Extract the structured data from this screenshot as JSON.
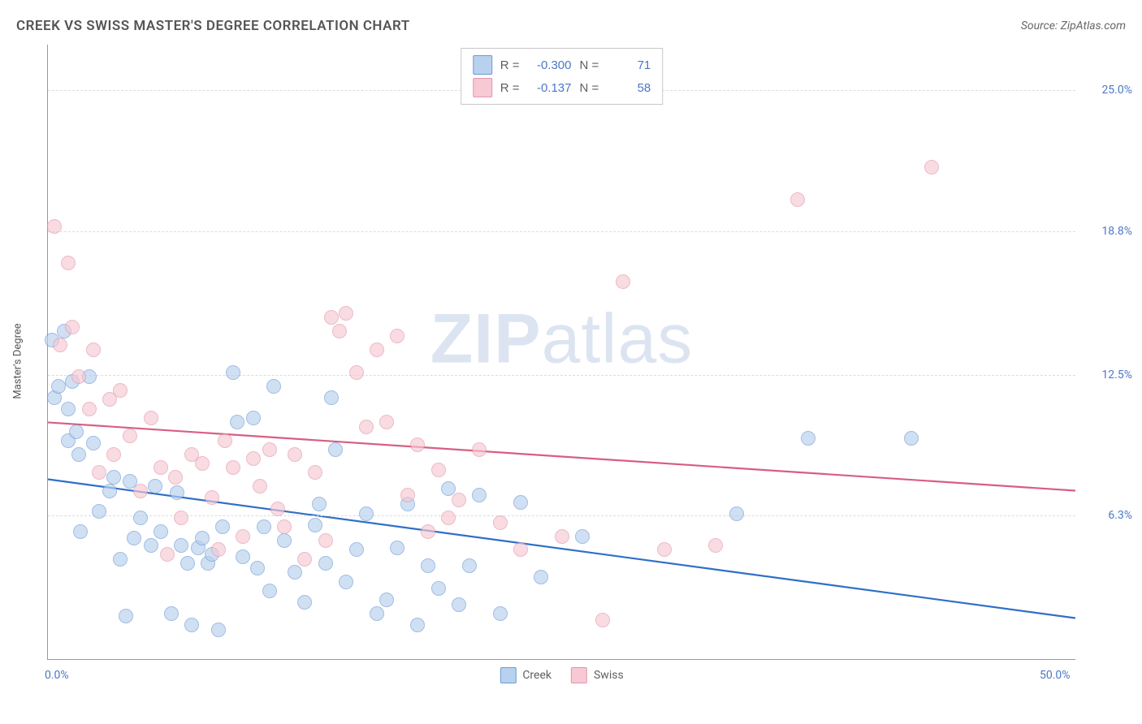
{
  "header": {
    "title": "CREEK VS SWISS MASTER'S DEGREE CORRELATION CHART",
    "source_prefix": "Source: ",
    "source_name": "ZipAtlas.com"
  },
  "watermark": {
    "zip": "ZIP",
    "atlas": "atlas"
  },
  "y_axis_label": "Master's Degree",
  "chart": {
    "type": "scatter",
    "xlim": [
      0,
      50
    ],
    "ylim": [
      0,
      27
    ],
    "x_ticks": [
      {
        "value": 0,
        "label": "0.0%"
      },
      {
        "value": 50,
        "label": "50.0%"
      }
    ],
    "y_gridlines": [
      {
        "value": 6.3,
        "label": "6.3%"
      },
      {
        "value": 12.5,
        "label": "12.5%"
      },
      {
        "value": 18.8,
        "label": "18.8%"
      },
      {
        "value": 25.0,
        "label": "25.0%"
      }
    ],
    "background_color": "#ffffff",
    "grid_color": "#dcdcdc",
    "axis_color": "#999999",
    "tick_label_color": "#4a78c8",
    "marker_radius": 9,
    "marker_border_width": 1.5,
    "trend_line_width": 2.2,
    "series": [
      {
        "name": "Creek",
        "fill": "#b8d1ee",
        "stroke": "#6e9ad6",
        "fill_opacity": 0.65,
        "R": "-0.300",
        "N": "71",
        "trend": {
          "y_at_x0": 7.9,
          "y_at_x50": 1.8,
          "color": "#2f6fc7"
        },
        "points": [
          [
            0.2,
            14.0
          ],
          [
            0.3,
            11.5
          ],
          [
            0.5,
            12.0
          ],
          [
            0.8,
            14.4
          ],
          [
            1.0,
            11.0
          ],
          [
            1.0,
            9.6
          ],
          [
            1.2,
            12.2
          ],
          [
            1.4,
            10.0
          ],
          [
            1.5,
            9.0
          ],
          [
            1.6,
            5.6
          ],
          [
            2.0,
            12.4
          ],
          [
            2.2,
            9.5
          ],
          [
            2.5,
            6.5
          ],
          [
            3.0,
            7.4
          ],
          [
            3.2,
            8.0
          ],
          [
            3.5,
            4.4
          ],
          [
            3.8,
            1.9
          ],
          [
            4.0,
            7.8
          ],
          [
            4.2,
            5.3
          ],
          [
            4.5,
            6.2
          ],
          [
            5.0,
            5.0
          ],
          [
            5.2,
            7.6
          ],
          [
            5.5,
            5.6
          ],
          [
            6.0,
            2.0
          ],
          [
            6.3,
            7.3
          ],
          [
            6.5,
            5.0
          ],
          [
            6.8,
            4.2
          ],
          [
            7.0,
            1.5
          ],
          [
            7.3,
            4.9
          ],
          [
            7.5,
            5.3
          ],
          [
            7.8,
            4.2
          ],
          [
            8.0,
            4.6
          ],
          [
            8.3,
            1.3
          ],
          [
            8.5,
            5.8
          ],
          [
            9.0,
            12.6
          ],
          [
            9.2,
            10.4
          ],
          [
            9.5,
            4.5
          ],
          [
            10.0,
            10.6
          ],
          [
            10.2,
            4.0
          ],
          [
            10.5,
            5.8
          ],
          [
            10.8,
            3.0
          ],
          [
            11.0,
            12.0
          ],
          [
            11.5,
            5.2
          ],
          [
            12.0,
            3.8
          ],
          [
            12.5,
            2.5
          ],
          [
            13.0,
            5.9
          ],
          [
            13.2,
            6.8
          ],
          [
            13.5,
            4.2
          ],
          [
            13.8,
            11.5
          ],
          [
            14.0,
            9.2
          ],
          [
            14.5,
            3.4
          ],
          [
            15.0,
            4.8
          ],
          [
            15.5,
            6.4
          ],
          [
            16.0,
            2.0
          ],
          [
            16.5,
            2.6
          ],
          [
            17.0,
            4.9
          ],
          [
            17.5,
            6.8
          ],
          [
            18.0,
            1.5
          ],
          [
            18.5,
            4.1
          ],
          [
            19.0,
            3.1
          ],
          [
            19.5,
            7.5
          ],
          [
            20.0,
            2.4
          ],
          [
            20.5,
            4.1
          ],
          [
            21.0,
            7.2
          ],
          [
            22.0,
            2.0
          ],
          [
            23.0,
            6.9
          ],
          [
            24.0,
            3.6
          ],
          [
            26.0,
            5.4
          ],
          [
            33.5,
            6.4
          ],
          [
            37.0,
            9.7
          ],
          [
            42.0,
            9.7
          ]
        ]
      },
      {
        "name": "Swiss",
        "fill": "#f6c9d4",
        "stroke": "#e396ab",
        "fill_opacity": 0.65,
        "R": "-0.137",
        "N": "58",
        "trend": {
          "y_at_x0": 10.4,
          "y_at_x50": 7.4,
          "color": "#d85e82"
        },
        "points": [
          [
            0.3,
            19.0
          ],
          [
            0.6,
            13.8
          ],
          [
            1.0,
            17.4
          ],
          [
            1.2,
            14.6
          ],
          [
            1.5,
            12.4
          ],
          [
            2.0,
            11.0
          ],
          [
            2.2,
            13.6
          ],
          [
            2.5,
            8.2
          ],
          [
            3.0,
            11.4
          ],
          [
            3.2,
            9.0
          ],
          [
            3.5,
            11.8
          ],
          [
            4.0,
            9.8
          ],
          [
            4.5,
            7.4
          ],
          [
            5.0,
            10.6
          ],
          [
            5.5,
            8.4
          ],
          [
            5.8,
            4.6
          ],
          [
            6.2,
            8.0
          ],
          [
            6.5,
            6.2
          ],
          [
            7.0,
            9.0
          ],
          [
            7.5,
            8.6
          ],
          [
            8.0,
            7.1
          ],
          [
            8.3,
            4.8
          ],
          [
            8.6,
            9.6
          ],
          [
            9.0,
            8.4
          ],
          [
            9.5,
            5.4
          ],
          [
            10.0,
            8.8
          ],
          [
            10.3,
            7.6
          ],
          [
            10.8,
            9.2
          ],
          [
            11.2,
            6.6
          ],
          [
            11.5,
            5.8
          ],
          [
            12.0,
            9.0
          ],
          [
            12.5,
            4.4
          ],
          [
            13.0,
            8.2
          ],
          [
            13.5,
            5.2
          ],
          [
            13.8,
            15.0
          ],
          [
            14.2,
            14.4
          ],
          [
            14.5,
            15.2
          ],
          [
            15.0,
            12.6
          ],
          [
            15.5,
            10.2
          ],
          [
            16.0,
            13.6
          ],
          [
            16.5,
            10.4
          ],
          [
            17.0,
            14.2
          ],
          [
            17.5,
            7.2
          ],
          [
            18.0,
            9.4
          ],
          [
            18.5,
            5.6
          ],
          [
            19.0,
            8.3
          ],
          [
            19.5,
            6.2
          ],
          [
            20.0,
            7.0
          ],
          [
            21.0,
            9.2
          ],
          [
            22.0,
            6.0
          ],
          [
            23.0,
            4.8
          ],
          [
            25.0,
            5.4
          ],
          [
            27.0,
            1.7
          ],
          [
            28.0,
            16.6
          ],
          [
            30.0,
            4.8
          ],
          [
            32.5,
            5.0
          ],
          [
            36.5,
            20.2
          ],
          [
            43.0,
            21.6
          ]
        ]
      }
    ]
  },
  "legend_top": {
    "r_label": "R =",
    "n_label": "N ="
  },
  "legend_bottom": [
    {
      "label": "Creek",
      "fill": "#b8d1ee",
      "stroke": "#6e9ad6"
    },
    {
      "label": "Swiss",
      "fill": "#f6c9d4",
      "stroke": "#e396ab"
    }
  ]
}
